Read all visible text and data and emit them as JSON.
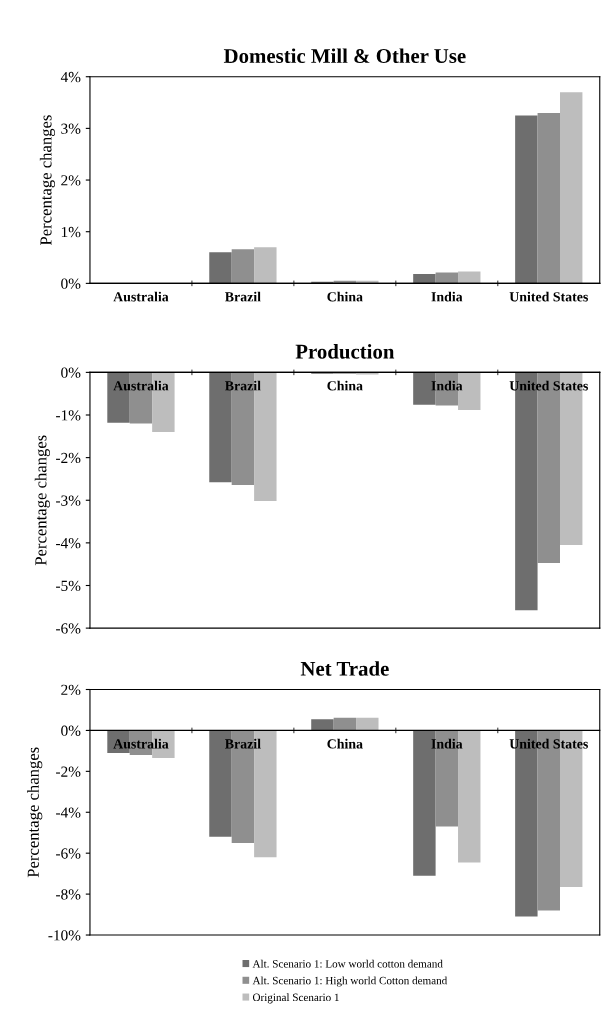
{
  "chart_data": [
    {
      "type": "bar",
      "title": "Domestic Mill & Other Use",
      "ylabel": "Percentage changes",
      "categories": [
        "Australia",
        "Brazil",
        "China",
        "India",
        "United States"
      ],
      "series": [
        {
          "color": "#6e6e6e",
          "values": [
            0,
            0.6,
            0.03,
            0.18,
            3.25
          ]
        },
        {
          "color": "#8f8f8f",
          "values": [
            0,
            0.66,
            0.05,
            0.21,
            3.3
          ]
        },
        {
          "color": "#bdbdbd",
          "values": [
            0,
            0.7,
            0.05,
            0.23,
            3.7
          ]
        }
      ],
      "ylim": [
        0,
        4
      ],
      "yticks": [
        {
          "value": 0,
          "label": "0%"
        },
        {
          "value": 1,
          "label": "1%"
        },
        {
          "value": 2,
          "label": "2%"
        },
        {
          "value": 3,
          "label": "3%"
        },
        {
          "value": 4,
          "label": "4%"
        }
      ],
      "grid": false,
      "legend": false
    },
    {
      "type": "bar",
      "title": "Production",
      "ylabel": "Percentage changes",
      "categories": [
        "Australia",
        "Brazil",
        "China",
        "India",
        "United States"
      ],
      "series": [
        {
          "color": "#6e6e6e",
          "values": [
            -1.18,
            -2.58,
            -0.03,
            -0.76,
            -5.58
          ]
        },
        {
          "color": "#8f8f8f",
          "values": [
            -1.2,
            -2.64,
            -0.03,
            -0.78,
            -4.47
          ]
        },
        {
          "color": "#bdbdbd",
          "values": [
            -1.4,
            -3.02,
            -0.05,
            -0.88,
            -4.05
          ]
        }
      ],
      "ylim": [
        -6,
        0
      ],
      "yticks": [
        {
          "value": -6,
          "label": "-6%"
        },
        {
          "value": -5,
          "label": "-5%"
        },
        {
          "value": -4,
          "label": "-4%"
        },
        {
          "value": -3,
          "label": "-3%"
        },
        {
          "value": -2,
          "label": "-2%"
        },
        {
          "value": -1,
          "label": "-1%"
        },
        {
          "value": 0,
          "label": "0%"
        }
      ],
      "grid": false,
      "legend": false
    },
    {
      "type": "bar",
      "title": "Net Trade",
      "ylabel": "Percentage changes",
      "categories": [
        "Australia",
        "Brazil",
        "China",
        "India",
        "United States"
      ],
      "series": [
        {
          "name": "Alt. Scenario 1: Low world cotton demand",
          "color": "#6e6e6e",
          "values": [
            -1.1,
            -5.2,
            0.55,
            -7.1,
            -9.1
          ]
        },
        {
          "name": "Alt. Scenario 1: High world Cotton demand",
          "color": "#8f8f8f",
          "values": [
            -1.2,
            -5.5,
            0.62,
            -4.7,
            -8.8
          ]
        },
        {
          "name": "Original Scenario 1",
          "color": "#bdbdbd",
          "values": [
            -1.35,
            -6.2,
            0.62,
            -6.45,
            -7.65
          ]
        }
      ],
      "ylim": [
        -10,
        2
      ],
      "yticks": [
        {
          "value": -10,
          "label": "-10%"
        },
        {
          "value": -8,
          "label": "-8%"
        },
        {
          "value": -6,
          "label": "-6%"
        },
        {
          "value": -4,
          "label": "-4%"
        },
        {
          "value": -2,
          "label": "-2%"
        },
        {
          "value": 0,
          "label": "0%"
        },
        {
          "value": 2,
          "label": "2%"
        }
      ],
      "grid": false,
      "legend": "bottom"
    }
  ]
}
